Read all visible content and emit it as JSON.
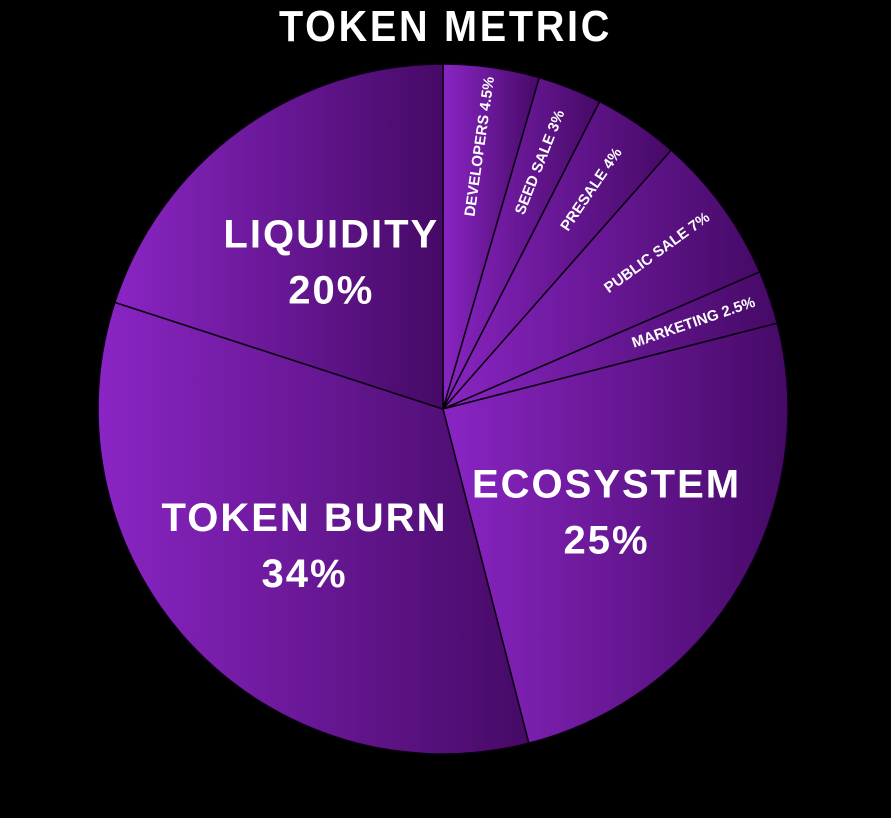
{
  "colors": {
    "background": "#000000",
    "slice_light": "#8a25c4",
    "slice_dark": "#460a66",
    "divider": "#0a0010",
    "text": "#ffffff"
  },
  "chart_data": {
    "type": "pie",
    "title": "TOKEN METRIC",
    "start_angle_deg": 0,
    "direction": "clockwise",
    "slices": [
      {
        "label": "DEVELOPERS",
        "value": 4.5,
        "value_label": "4.5%",
        "style": "radial"
      },
      {
        "label": "SEED SALE",
        "value": 3,
        "value_label": "3%",
        "style": "radial"
      },
      {
        "label": "PRESALE",
        "value": 4,
        "value_label": "4%",
        "style": "radial"
      },
      {
        "label": "PUBLIC SALE",
        "value": 7,
        "value_label": "7%",
        "style": "radial"
      },
      {
        "label": "MARKETING",
        "value": 2.5,
        "value_label": "2.5%",
        "style": "radial"
      },
      {
        "label": "ECOSYSTEM",
        "value": 25,
        "value_label": "25%",
        "style": "stacked"
      },
      {
        "label": "TOKEN BURN",
        "value": 34,
        "value_label": "34%",
        "style": "stacked"
      },
      {
        "label": "LIQUIDITY",
        "value": 20,
        "value_label": "20%",
        "style": "stacked"
      }
    ]
  }
}
